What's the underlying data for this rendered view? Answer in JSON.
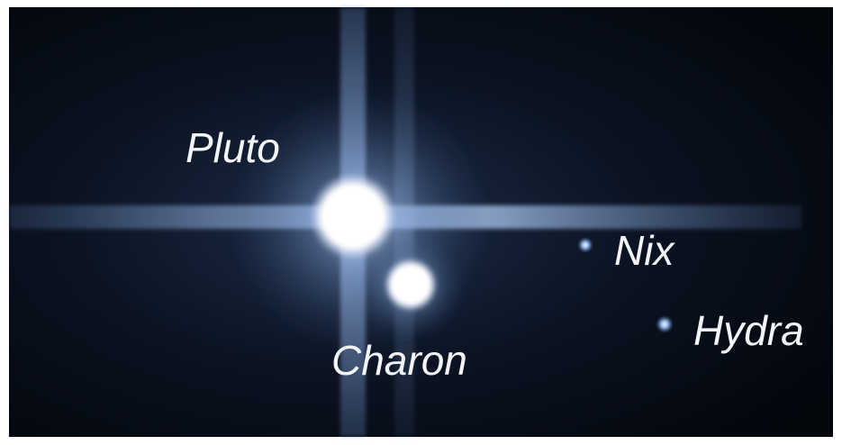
{
  "labels": [
    "Pluto",
    "Charon",
    "Nix",
    "Hydra"
  ]
}
